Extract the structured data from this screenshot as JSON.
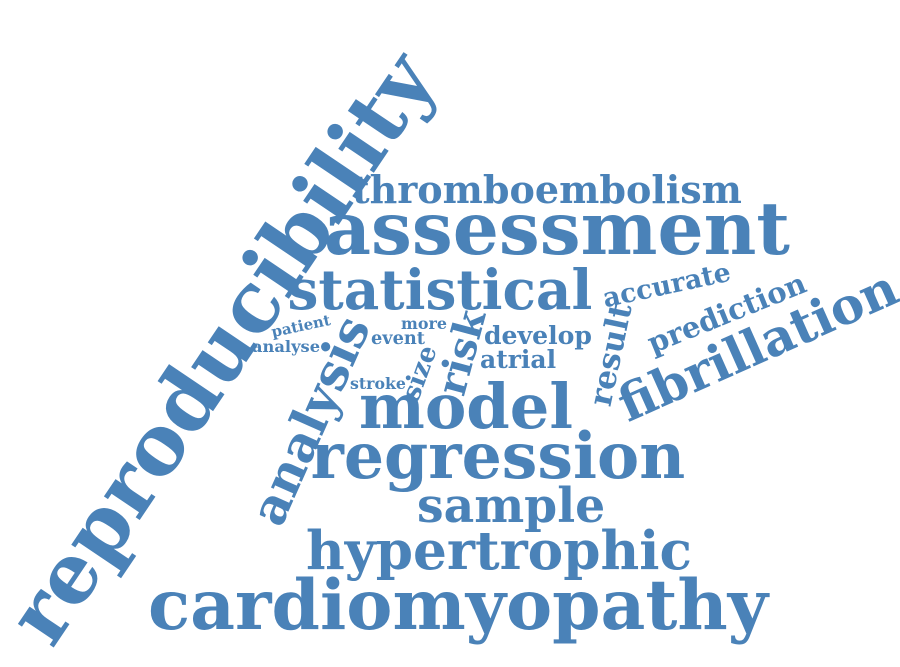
{
  "color": "#4a82b8",
  "words": [
    {
      "id": "reproducibility",
      "text": "reproducibility"
    },
    {
      "id": "cardiomyopathy",
      "text": "cardiomyopathy"
    },
    {
      "id": "assessment",
      "text": "assessment"
    },
    {
      "id": "statistical",
      "text": "statistical"
    },
    {
      "id": "regression",
      "text": "regression"
    },
    {
      "id": "hypertrophic",
      "text": "hypertrophic"
    },
    {
      "id": "fibrillation",
      "text": "fibrillation"
    },
    {
      "id": "thromboembolism",
      "text": "thromboembolism"
    },
    {
      "id": "model",
      "text": "model"
    },
    {
      "id": "analysis",
      "text": "analysis"
    },
    {
      "id": "sample",
      "text": "sample"
    },
    {
      "id": "prediction",
      "text": "prediction"
    },
    {
      "id": "accurate",
      "text": "accurate"
    },
    {
      "id": "risk",
      "text": "risk"
    },
    {
      "id": "result",
      "text": "result"
    },
    {
      "id": "develop",
      "text": "develop"
    },
    {
      "id": "atrial",
      "text": "atrial"
    },
    {
      "id": "size",
      "text": "size"
    },
    {
      "id": "stroke",
      "text": "stroke"
    },
    {
      "id": "event",
      "text": "event"
    },
    {
      "id": "more",
      "text": "more"
    },
    {
      "id": "patient",
      "text": "patient"
    },
    {
      "id": "analyse",
      "text": "analyse"
    }
  ]
}
